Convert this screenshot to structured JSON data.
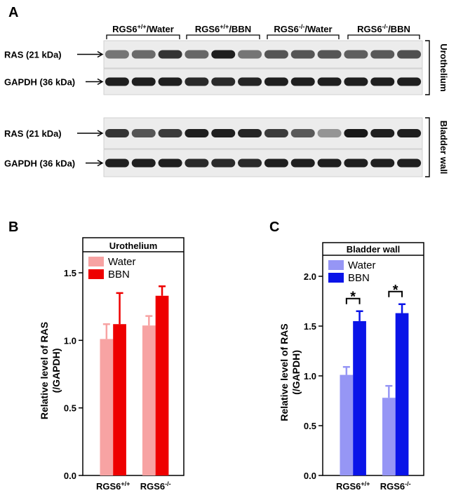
{
  "panels": {
    "a": "A",
    "b": "B",
    "c": "C"
  },
  "blot": {
    "groups": [
      {
        "base": "RGS6",
        "sup": "+/+",
        "suffix": "/Water"
      },
      {
        "base": "RGS6",
        "sup": "+/+",
        "suffix": "/BBN"
      },
      {
        "base": "RGS6",
        "sup": "-/-",
        "suffix": "/Water"
      },
      {
        "base": "RGS6",
        "sup": "-/-",
        "suffix": "/BBN"
      }
    ],
    "tissues": [
      "Urothelium",
      "Bladder wall"
    ],
    "rows": [
      {
        "label": "RAS (21 kDa)",
        "tissue": 0,
        "intensity": [
          0.55,
          0.6,
          0.85,
          0.62,
          0.95,
          0.55,
          0.7,
          0.7,
          0.7,
          0.65,
          0.68,
          0.72
        ]
      },
      {
        "label": "GAPDH (36 kDa)",
        "tissue": 0,
        "intensity": [
          0.95,
          0.95,
          0.95,
          0.9,
          0.9,
          0.92,
          0.95,
          0.95,
          0.95,
          0.95,
          0.95,
          0.95
        ]
      },
      {
        "label": "RAS (21 kDa)",
        "tissue": 1,
        "intensity": [
          0.85,
          0.7,
          0.82,
          0.95,
          0.95,
          0.92,
          0.82,
          0.68,
          0.4,
          0.98,
          0.95,
          0.95
        ]
      },
      {
        "label": "GAPDH (36 kDa)",
        "tissue": 1,
        "intensity": [
          0.95,
          0.95,
          0.95,
          0.9,
          0.9,
          0.9,
          0.95,
          0.95,
          0.95,
          0.95,
          0.95,
          0.95
        ]
      }
    ]
  },
  "chart_data": [
    {
      "type": "bar",
      "title": "Urothelium",
      "ylabel_line1": "Relative level of RAS",
      "ylabel_line2": "(/GAPDH)",
      "ylim": [
        0,
        1.5
      ],
      "yticks": [
        "0.0",
        "0.5",
        "1.0",
        "1.5"
      ],
      "categories": [
        {
          "base": "RGS6",
          "sup": "+/+"
        },
        {
          "base": "RGS6",
          "sup": "-/-"
        }
      ],
      "series": [
        {
          "name": "Water",
          "color": "#f7a3a3",
          "values": [
            1.01,
            1.11
          ],
          "errors": [
            0.11,
            0.07
          ]
        },
        {
          "name": "BBN",
          "color": "#ee0000",
          "values": [
            1.12,
            1.33
          ],
          "errors": [
            0.23,
            0.07
          ]
        }
      ],
      "significance": [],
      "legend": "top-left"
    },
    {
      "type": "bar",
      "title": "Bladder wall",
      "ylabel_line1": "Relative level of RAS",
      "ylabel_line2": "(/GAPDH)",
      "ylim": [
        0,
        2.0
      ],
      "yticks": [
        "0.0",
        "0.5",
        "1.0",
        "1.5",
        "2.0"
      ],
      "categories": [
        {
          "base": "RGS6",
          "sup": "+/+"
        },
        {
          "base": "RGS6",
          "sup": "-/-"
        }
      ],
      "series": [
        {
          "name": "Water",
          "color": "#9696f5",
          "values": [
            1.01,
            0.78
          ],
          "errors": [
            0.08,
            0.12
          ]
        },
        {
          "name": "BBN",
          "color": "#0a14e8",
          "values": [
            1.55,
            1.63
          ],
          "errors": [
            0.1,
            0.09
          ]
        }
      ],
      "significance": [
        "*",
        "*"
      ],
      "legend": "top-left"
    }
  ]
}
